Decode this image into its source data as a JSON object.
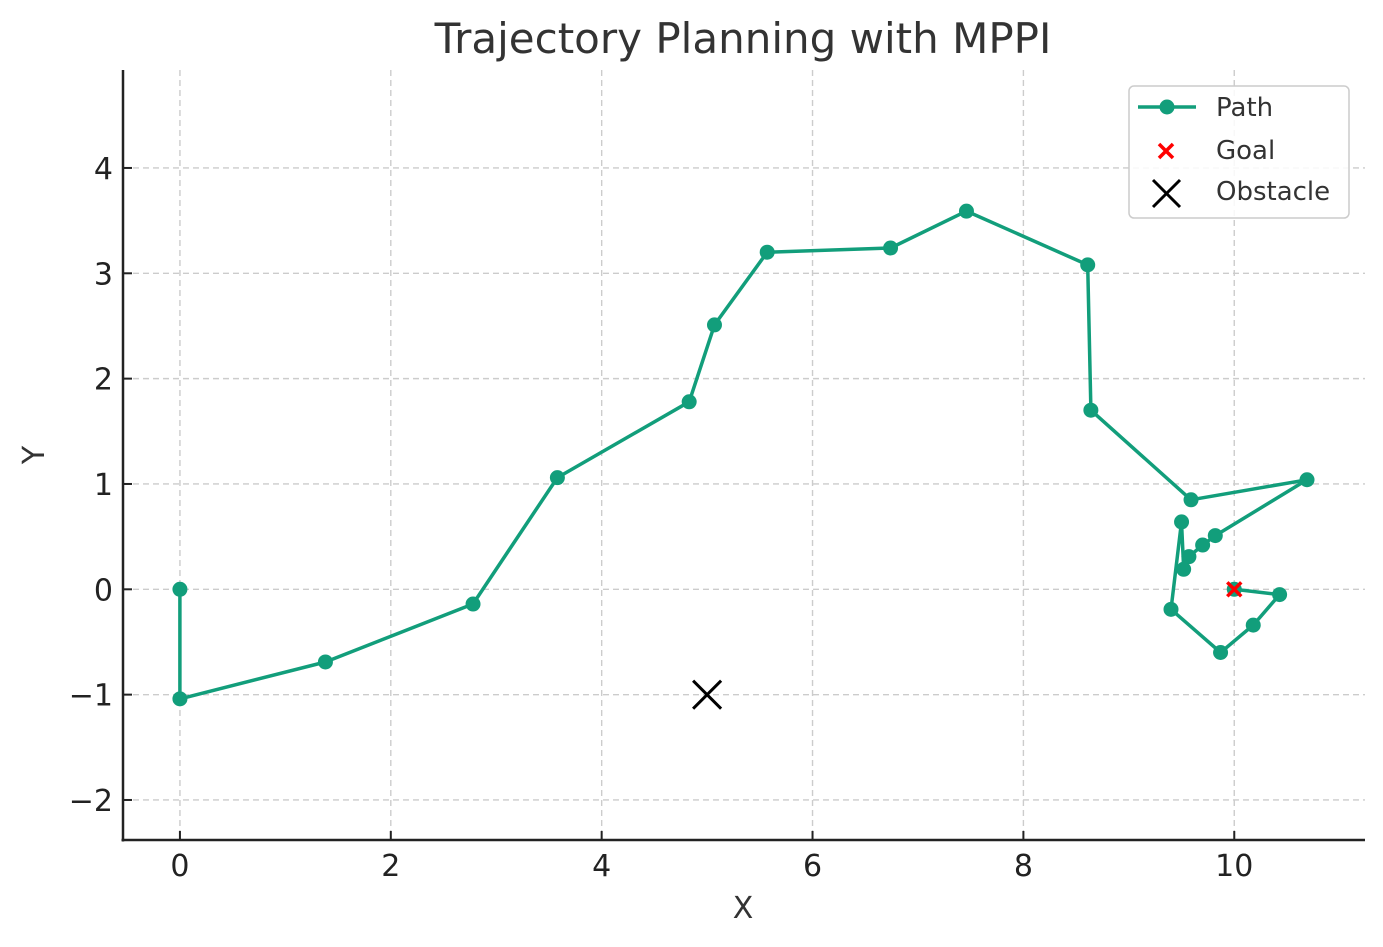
{
  "chart_data": {
    "type": "line",
    "title": "Trajectory Planning with MPPI",
    "xlabel": "X",
    "ylabel": "Y",
    "xlim": [
      -0.54,
      11.24
    ],
    "ylim": [
      -2.38,
      4.93
    ],
    "xticks": [
      0,
      2,
      4,
      6,
      8,
      10
    ],
    "yticks": [
      -2,
      -1,
      0,
      1,
      2,
      3,
      4
    ],
    "ytick_labels": [
      "−2",
      "−1",
      "0",
      "1",
      "2",
      "3",
      "4"
    ],
    "xtick_labels": [
      "0",
      "2",
      "4",
      "6",
      "8",
      "10"
    ],
    "grid": true,
    "legend_position": "upper right",
    "series": [
      {
        "name": "Path",
        "kind": "line-with-markers",
        "color": "#129e7b",
        "points": [
          [
            0.0,
            0.0
          ],
          [
            0.0,
            -1.04
          ],
          [
            1.38,
            -0.69
          ],
          [
            2.78,
            -0.14
          ],
          [
            3.58,
            1.06
          ],
          [
            4.83,
            1.78
          ],
          [
            5.07,
            2.51
          ],
          [
            5.57,
            3.2
          ],
          [
            6.74,
            3.24
          ],
          [
            7.46,
            3.59
          ],
          [
            8.61,
            3.08
          ],
          [
            8.64,
            1.7
          ],
          [
            9.59,
            0.85
          ],
          [
            10.69,
            1.04
          ],
          [
            9.82,
            0.51
          ],
          [
            9.7,
            0.42
          ],
          [
            9.57,
            0.31
          ],
          [
            9.52,
            0.19
          ],
          [
            9.5,
            0.64
          ],
          [
            9.4,
            -0.19
          ],
          [
            9.87,
            -0.6
          ],
          [
            10.18,
            -0.34
          ],
          [
            10.43,
            -0.05
          ],
          [
            10.0,
            0.0
          ]
        ]
      },
      {
        "name": "Goal",
        "kind": "x-marker",
        "color": "#ff0000",
        "points": [
          [
            10.0,
            0.0
          ]
        ]
      },
      {
        "name": "Obstacle",
        "kind": "x-marker-large",
        "color": "#000000",
        "points": [
          [
            5.0,
            -1.0
          ]
        ]
      }
    ],
    "legend": [
      {
        "label": "Path",
        "marker": "line-dot",
        "color": "#129e7b"
      },
      {
        "label": "Goal",
        "marker": "x",
        "color": "#ff0000"
      },
      {
        "label": "Obstacle",
        "marker": "x-large",
        "color": "#000000"
      }
    ]
  }
}
